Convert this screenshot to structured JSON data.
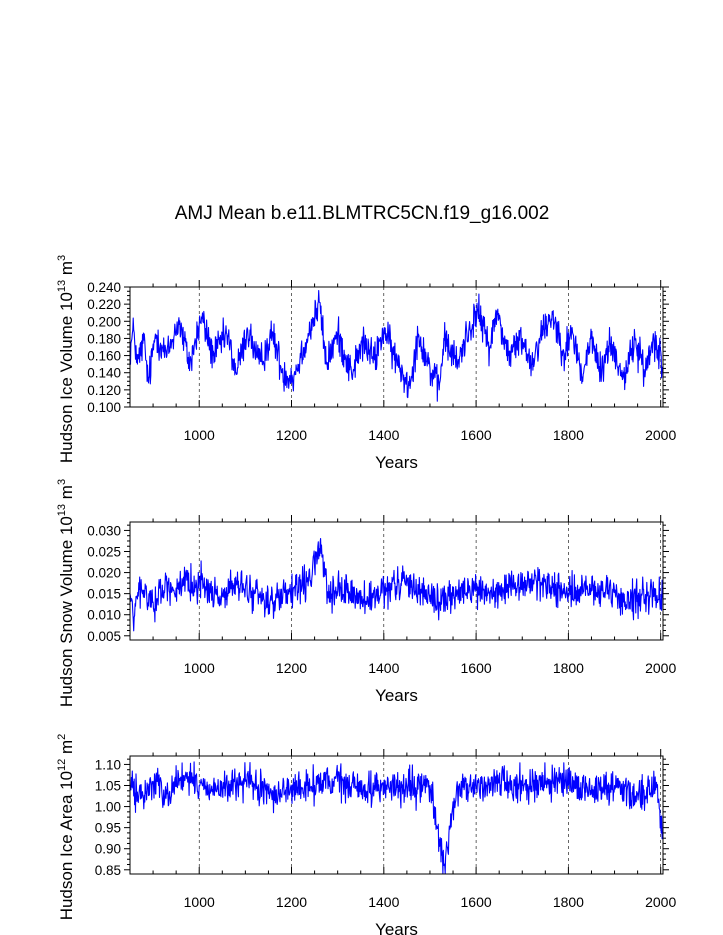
{
  "title": "AMJ Mean b.e11.BLMTRC5CN.f19_g16.002",
  "line_color": "#0000ff",
  "chart_data": [
    {
      "type": "line",
      "title": "AMJ Mean b.e11.BLMTRC5CN.f19_g16.002",
      "ylabel": "Hudson Ice Volume 10",
      "ylabel_sup": "13",
      "ylabel_unit": " m",
      "ylabel_unit_sup": "3",
      "xlabel": "Years",
      "xlim": [
        850,
        2005
      ],
      "ylim": [
        0.1,
        0.24
      ],
      "xticks": [
        1000,
        1200,
        1400,
        1600,
        1800,
        2000
      ],
      "xtick_labels": [
        "1000",
        "1200",
        "1400",
        "1600",
        "1800",
        "2000"
      ],
      "yticks": [
        0.1,
        0.12,
        0.14,
        0.16,
        0.18,
        0.2,
        0.22,
        0.24
      ],
      "ytick_labels": [
        "0.100",
        "0.120",
        "0.140",
        "0.160",
        "0.180",
        "0.200",
        "0.220",
        "0.240"
      ],
      "x_gridlines": [
        1000,
        1200,
        1400,
        1600,
        1800,
        2000
      ],
      "series": [
        {
          "start_year": 850,
          "keypoints": [
            [
              850,
              0.165
            ],
            [
              858,
              0.19
            ],
            [
              866,
              0.15
            ],
            [
              880,
              0.178
            ],
            [
              890,
              0.128
            ],
            [
              905,
              0.185
            ],
            [
              930,
              0.16
            ],
            [
              955,
              0.2
            ],
            [
              980,
              0.15
            ],
            [
              1005,
              0.205
            ],
            [
              1030,
              0.16
            ],
            [
              1060,
              0.185
            ],
            [
              1080,
              0.14
            ],
            [
              1105,
              0.19
            ],
            [
              1130,
              0.15
            ],
            [
              1160,
              0.185
            ],
            [
              1180,
              0.14
            ],
            [
              1205,
              0.135
            ],
            [
              1230,
              0.175
            ],
            [
              1261,
              0.222
            ],
            [
              1275,
              0.15
            ],
            [
              1300,
              0.185
            ],
            [
              1330,
              0.14
            ],
            [
              1355,
              0.175
            ],
            [
              1380,
              0.155
            ],
            [
              1400,
              0.19
            ],
            [
              1430,
              0.15
            ],
            [
              1455,
              0.125
            ],
            [
              1475,
              0.185
            ],
            [
              1500,
              0.145
            ],
            [
              1520,
              0.12
            ],
            [
              1530,
              0.18
            ],
            [
              1560,
              0.15
            ],
            [
              1580,
              0.185
            ],
            [
              1603,
              0.212
            ],
            [
              1630,
              0.17
            ],
            [
              1645,
              0.212
            ],
            [
              1670,
              0.16
            ],
            [
              1700,
              0.18
            ],
            [
              1720,
              0.15
            ],
            [
              1740,
              0.185
            ],
            [
              1766,
              0.208
            ],
            [
              1790,
              0.165
            ],
            [
              1810,
              0.185
            ],
            [
              1830,
              0.135
            ],
            [
              1850,
              0.18
            ],
            [
              1870,
              0.14
            ],
            [
              1890,
              0.175
            ],
            [
              1920,
              0.135
            ],
            [
              1945,
              0.178
            ],
            [
              1965,
              0.14
            ],
            [
              1985,
              0.18
            ],
            [
              2000,
              0.165
            ],
            [
              2004,
              0.14
            ]
          ],
          "noise": 0.0142
        }
      ]
    },
    {
      "type": "line",
      "ylabel": "Hudson Snow Volume 10",
      "ylabel_sup": "13",
      "ylabel_unit": " m",
      "ylabel_unit_sup": "3",
      "xlabel": "Years",
      "xlim": [
        850,
        2005
      ],
      "ylim": [
        0.004,
        0.032
      ],
      "xticks": [
        1000,
        1200,
        1400,
        1600,
        1800,
        2000
      ],
      "xtick_labels": [
        "1000",
        "1200",
        "1400",
        "1600",
        "1800",
        "2000"
      ],
      "yticks": [
        0.005,
        0.01,
        0.015,
        0.02,
        0.025,
        0.03
      ],
      "ytick_labels": [
        "0.005",
        "0.010",
        "0.015",
        "0.020",
        "0.025",
        "0.030"
      ],
      "x_gridlines": [
        1000,
        1200,
        1400,
        1600,
        1800,
        2000
      ],
      "series": [
        {
          "start_year": 850,
          "keypoints": [
            [
              850,
              0.015
            ],
            [
              857,
              0.009
            ],
            [
              870,
              0.016
            ],
            [
              900,
              0.013
            ],
            [
              930,
              0.017
            ],
            [
              960,
              0.016
            ],
            [
              1000,
              0.018
            ],
            [
              1040,
              0.014
            ],
            [
              1080,
              0.017
            ],
            [
              1120,
              0.015
            ],
            [
              1160,
              0.013
            ],
            [
              1200,
              0.015
            ],
            [
              1240,
              0.018
            ],
            [
              1262,
              0.027
            ],
            [
              1280,
              0.014
            ],
            [
              1320,
              0.016
            ],
            [
              1360,
              0.013
            ],
            [
              1400,
              0.015
            ],
            [
              1440,
              0.018
            ],
            [
              1480,
              0.016
            ],
            [
              1520,
              0.013
            ],
            [
              1560,
              0.015
            ],
            [
              1600,
              0.016
            ],
            [
              1640,
              0.015
            ],
            [
              1680,
              0.016
            ],
            [
              1720,
              0.018
            ],
            [
              1760,
              0.017
            ],
            [
              1800,
              0.015
            ],
            [
              1840,
              0.016
            ],
            [
              1880,
              0.015
            ],
            [
              1920,
              0.013
            ],
            [
              1960,
              0.015
            ],
            [
              2004,
              0.014
            ]
          ],
          "noise": 0.0028
        }
      ]
    },
    {
      "type": "line",
      "ylabel": "Hudson Ice Area 10",
      "ylabel_sup": "12",
      "ylabel_unit": " m",
      "ylabel_unit_sup": "2",
      "xlabel": "Years",
      "xlim": [
        850,
        2005
      ],
      "ylim": [
        0.84,
        1.12
      ],
      "xticks": [
        1000,
        1200,
        1400,
        1600,
        1800,
        2000
      ],
      "xtick_labels": [
        "1000",
        "1200",
        "1400",
        "1600",
        "1800",
        "2000"
      ],
      "yticks": [
        0.85,
        0.9,
        0.95,
        1.0,
        1.05,
        1.1
      ],
      "ytick_labels": [
        "0.85",
        "0.90",
        "0.95",
        "1.00",
        "1.05",
        "1.10"
      ],
      "x_gridlines": [
        1000,
        1200,
        1400,
        1600,
        1800,
        2000
      ],
      "series": [
        {
          "start_year": 850,
          "keypoints": [
            [
              850,
              1.05
            ],
            [
              875,
              1.02
            ],
            [
              900,
              1.06
            ],
            [
              930,
              1.03
            ],
            [
              960,
              1.07
            ],
            [
              1000,
              1.05
            ],
            [
              1050,
              1.04
            ],
            [
              1100,
              1.06
            ],
            [
              1150,
              1.03
            ],
            [
              1200,
              1.04
            ],
            [
              1250,
              1.05
            ],
            [
              1300,
              1.06
            ],
            [
              1350,
              1.04
            ],
            [
              1400,
              1.05
            ],
            [
              1450,
              1.04
            ],
            [
              1500,
              1.05
            ],
            [
              1531,
              0.86
            ],
            [
              1560,
              1.04
            ],
            [
              1600,
              1.05
            ],
            [
              1650,
              1.06
            ],
            [
              1700,
              1.05
            ],
            [
              1750,
              1.06
            ],
            [
              1800,
              1.05
            ],
            [
              1850,
              1.04
            ],
            [
              1900,
              1.05
            ],
            [
              1950,
              1.03
            ],
            [
              1990,
              1.05
            ],
            [
              2004,
              0.93
            ]
          ],
          "noise": 0.028
        }
      ]
    }
  ]
}
